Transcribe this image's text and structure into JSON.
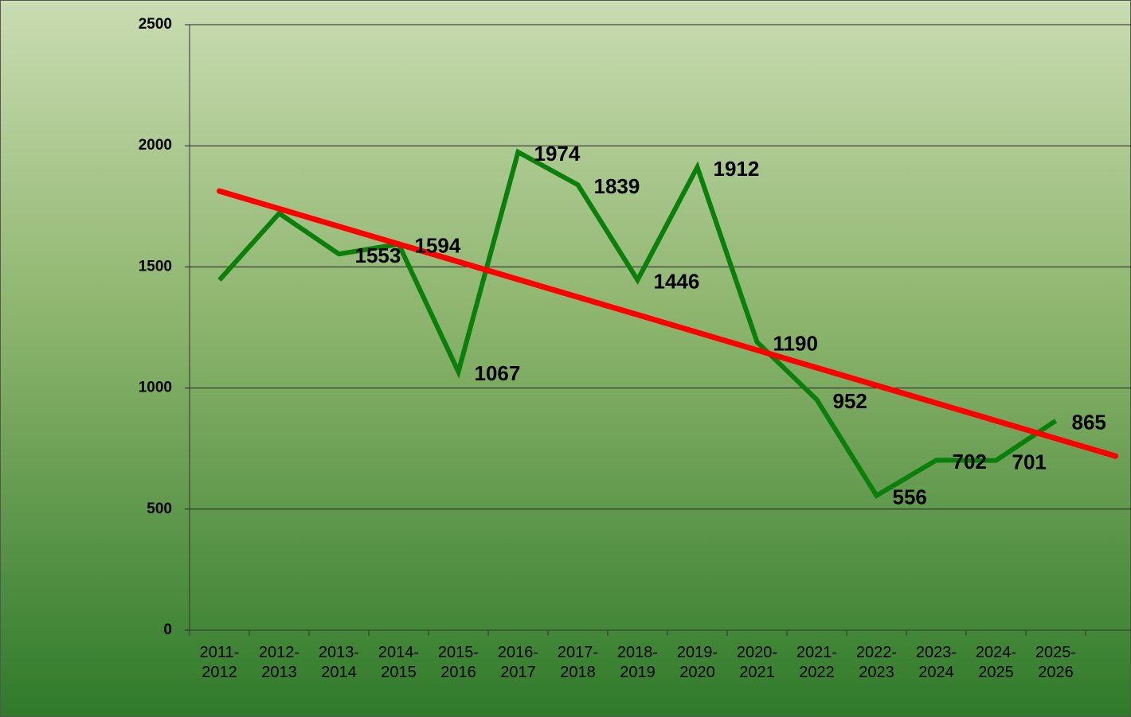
{
  "chart_data": {
    "type": "line",
    "categories": [
      "2011-2012",
      "2012-2013",
      "2013-2014",
      "2014-2015",
      "2015-2016",
      "2016-2017",
      "2017-2018",
      "2018-2019",
      "2019-2020",
      "2020-2021",
      "2021-2022",
      "2022-2023",
      "2023-2024",
      "2024-2025",
      "2025-2026"
    ],
    "series": [
      {
        "color": "#0a7f0a",
        "values": [
          1446,
          1721,
          1553,
          1594,
          1067,
          1974,
          1839,
          1446,
          1912,
          1190,
          952,
          556,
          702,
          701,
          865
        ],
        "value_labels": [
          null,
          null,
          "1553",
          "1594",
          "1067",
          "1974",
          "1839",
          "1446",
          "1912",
          "1190",
          "952",
          "556",
          "702",
          "701",
          "865"
        ]
      }
    ],
    "trend": {
      "color": "#ff0000",
      "values": [
        1813,
        719
      ],
      "forward": 1
    },
    "ylim": [
      0,
      2500
    ],
    "yticks": [
      0,
      500,
      1000,
      1500,
      2000,
      2500
    ],
    "grid": true
  }
}
